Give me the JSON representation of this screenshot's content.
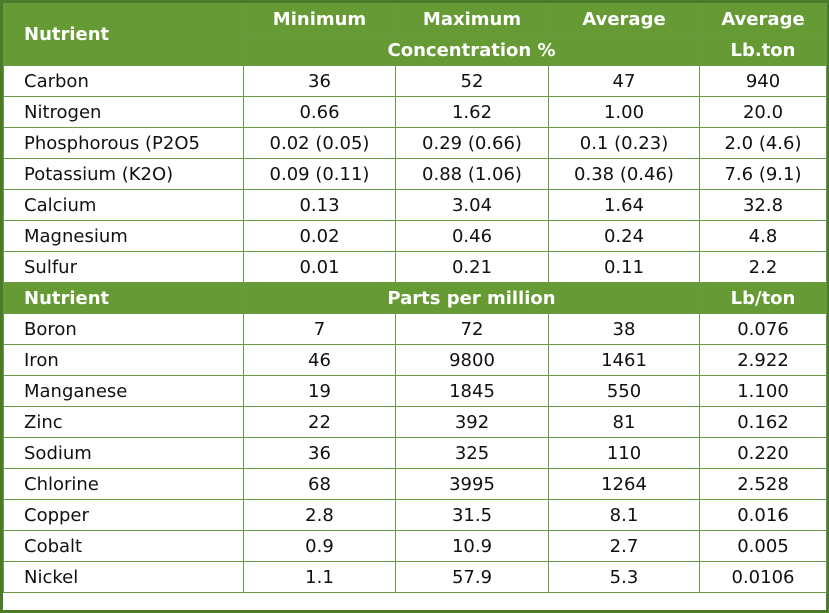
{
  "header1": {
    "nutrient": "Nutrient",
    "minimum": "Minimum",
    "maximum": "Maximum",
    "average": "Average",
    "average2": "Average",
    "concentration": "Concentration %",
    "lbton": "Lb.ton"
  },
  "rows1": [
    {
      "name": "Carbon",
      "min": "36",
      "max": "52",
      "avg": "47",
      "lb": "940"
    },
    {
      "name": "Nitrogen",
      "min": "0.66",
      "max": "1.62",
      "avg": "1.00",
      "lb": "20.0"
    },
    {
      "name": "Phosphorous (P2O5",
      "min": "0.02 (0.05)",
      "max": "0.29 (0.66)",
      "avg": "0.1 (0.23)",
      "lb": "2.0 (4.6)"
    },
    {
      "name": "Potassium (K2O)",
      "min": "0.09 (0.11)",
      "max": "0.88 (1.06)",
      "avg": "0.38 (0.46)",
      "lb": "7.6 (9.1)"
    },
    {
      "name": "Calcium",
      "min": "0.13",
      "max": "3.04",
      "avg": "1.64",
      "lb": "32.8"
    },
    {
      "name": "Magnesium",
      "min": "0.02",
      "max": "0.46",
      "avg": "0.24",
      "lb": "4.8"
    },
    {
      "name": "Sulfur",
      "min": "0.01",
      "max": "0.21",
      "avg": "0.11",
      "lb": "2.2"
    }
  ],
  "header2": {
    "nutrient": "Nutrient",
    "ppm": "Parts per million",
    "lbton": "Lb/ton"
  },
  "rows2": [
    {
      "name": "Boron",
      "min": "7",
      "max": "72",
      "avg": "38",
      "lb": "0.076"
    },
    {
      "name": "Iron",
      "min": "46",
      "max": "9800",
      "avg": "1461",
      "lb": "2.922"
    },
    {
      "name": "Manganese",
      "min": "19",
      "max": "1845",
      "avg": "550",
      "lb": "1.100"
    },
    {
      "name": "Zinc",
      "min": "22",
      "max": "392",
      "avg": "81",
      "lb": "0.162"
    },
    {
      "name": "Sodium",
      "min": "36",
      "max": "325",
      "avg": "110",
      "lb": "0.220"
    },
    {
      "name": "Chlorine",
      "min": "68",
      "max": "3995",
      "avg": "1264",
      "lb": "2.528"
    },
    {
      "name": "Copper",
      "min": "2.8",
      "max": "31.5",
      "avg": "8.1",
      "lb": "0.016"
    },
    {
      "name": "Cobalt",
      "min": "0.9",
      "max": "10.9",
      "avg": "2.7",
      "lb": "0.005"
    },
    {
      "name": "Nickel",
      "min": "1.1",
      "max": "57.9",
      "avg": "5.3",
      "lb": "0.0106"
    }
  ],
  "colors": {
    "header_bg": "#669a35",
    "border": "#6a9a45",
    "outer_border": "#4a7a2a"
  }
}
